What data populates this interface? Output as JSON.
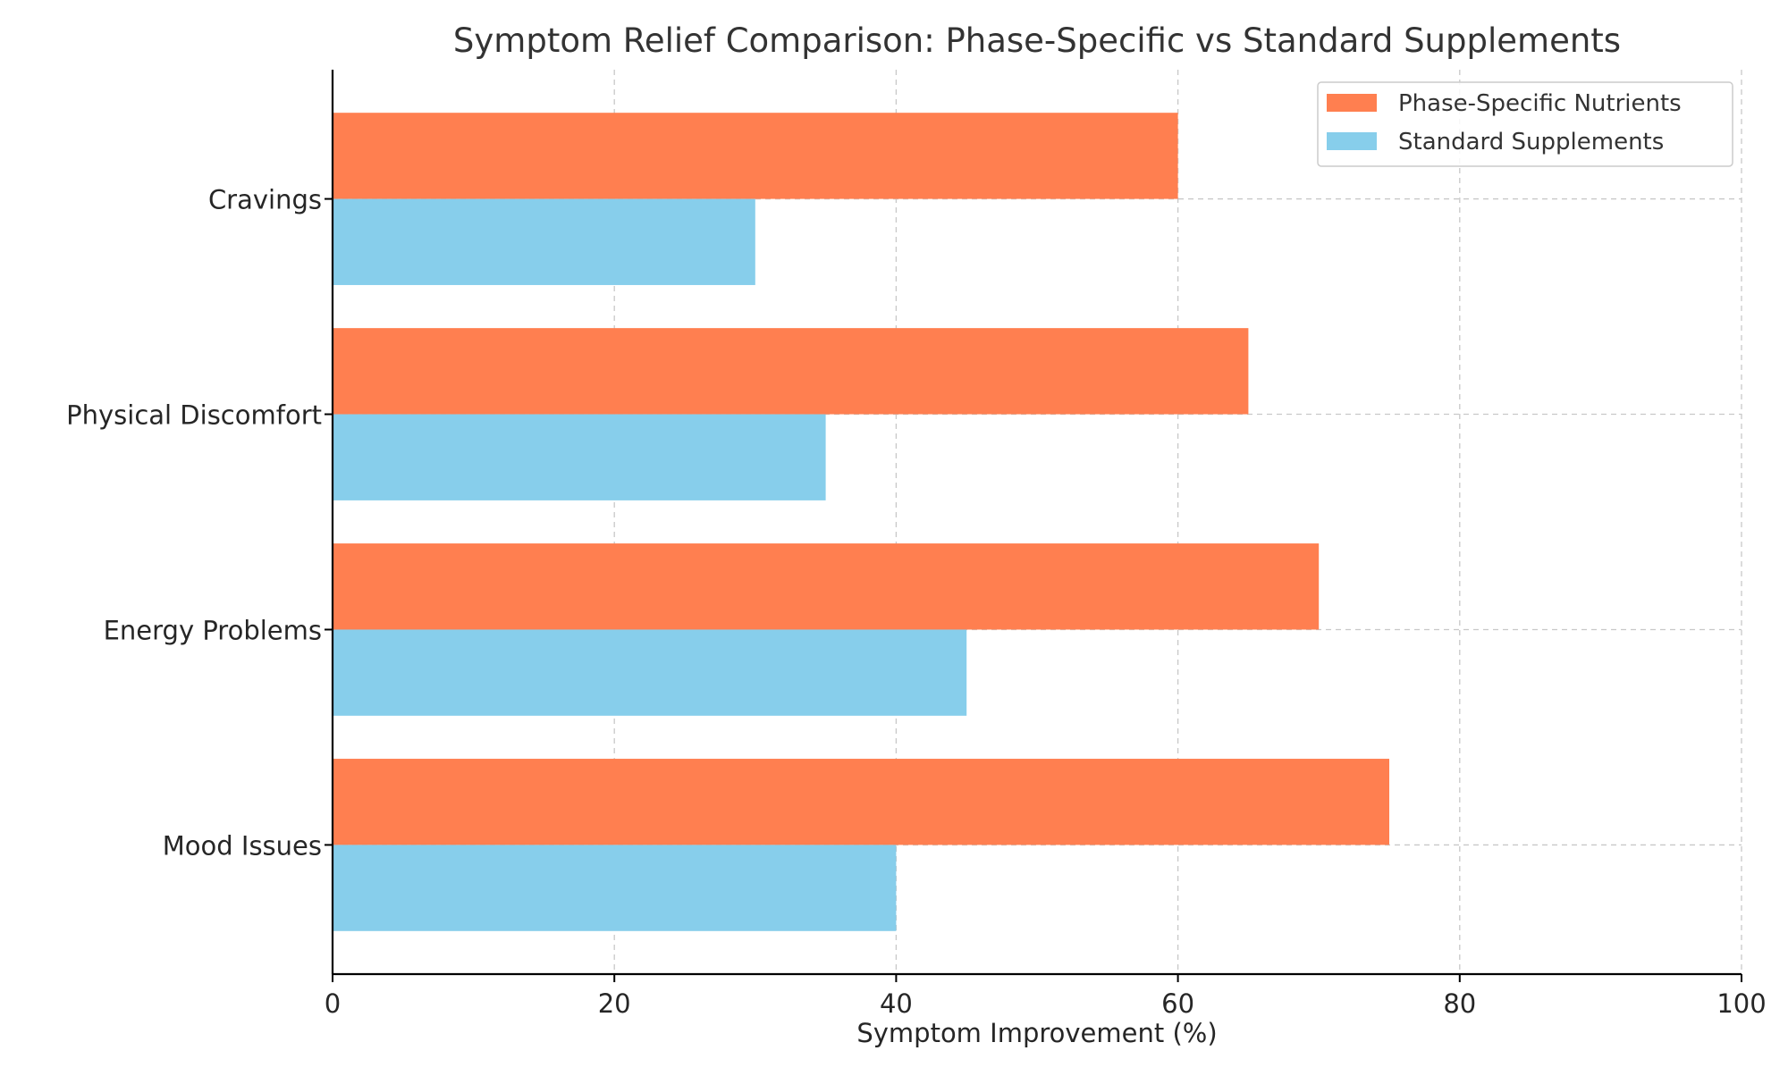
{
  "chart_data": {
    "type": "bar",
    "orientation": "horizontal",
    "title": "Symptom Relief Comparison: Phase-Specific vs Standard Supplements",
    "xlabel": "Symptom Improvement (%)",
    "ylabel": "",
    "xlim": [
      0,
      100
    ],
    "x_ticks": [
      "0",
      "20",
      "40",
      "60",
      "80",
      "100"
    ],
    "categories": [
      "Mood Issues",
      "Energy Problems",
      "Physical Discomfort",
      "Cravings"
    ],
    "series": [
      {
        "name": "Phase-Specific Nutrients",
        "color": "#ff7f50",
        "values": [
          75,
          70,
          65,
          60
        ]
      },
      {
        "name": "Standard Supplements",
        "color": "#87ceeb",
        "values": [
          40,
          45,
          35,
          30
        ]
      }
    ],
    "grid": true,
    "legend_position": "top-right"
  }
}
